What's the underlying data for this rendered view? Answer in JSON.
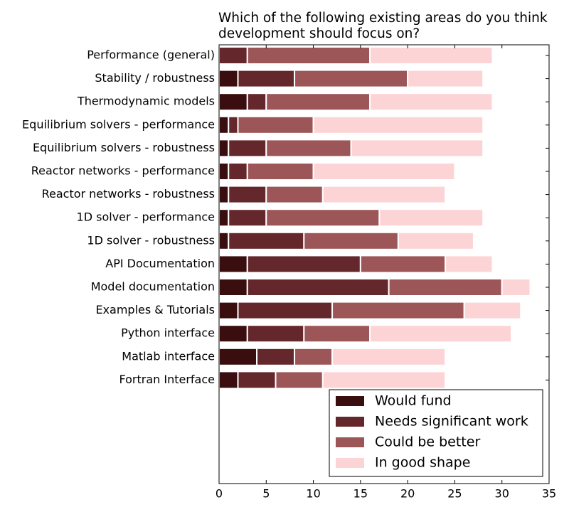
{
  "chart_data": {
    "type": "stacked-barh",
    "title": "Which of the following existing areas do you think development should focus on?",
    "categories": [
      "Performance (general)",
      "Stability / robustness",
      "Thermodynamic models",
      "Equilibrium solvers - performance",
      "Equilibrium solvers - robustness",
      "Reactor networks - performance",
      "Reactor networks - robustness",
      "1D solver - performance",
      "1D solver - robustness",
      "API Documentation",
      "Model documentation",
      "Examples & Tutorials",
      "Python interface",
      "Matlab interface",
      "Fortran Interface"
    ],
    "series": [
      {
        "name": "Would fund",
        "color": "#3a0e0f",
        "values": [
          0,
          2,
          3,
          1,
          1,
          1,
          1,
          1,
          1,
          3,
          3,
          2,
          3,
          4,
          2
        ]
      },
      {
        "name": "Needs significant work",
        "color": "#64272b",
        "values": [
          3,
          6,
          2,
          1,
          4,
          2,
          4,
          4,
          8,
          12,
          15,
          10,
          6,
          4,
          4
        ]
      },
      {
        "name": "Could be better",
        "color": "#9c5657",
        "values": [
          13,
          12,
          11,
          8,
          9,
          7,
          6,
          12,
          10,
          9,
          12,
          14,
          7,
          4,
          5
        ]
      },
      {
        "name": "In good shape",
        "color": "#fdd4d6",
        "values": [
          13,
          8,
          13,
          18,
          14,
          15,
          13,
          11,
          8,
          5,
          3,
          6,
          15,
          12,
          13
        ]
      }
    ],
    "xlim": [
      0,
      35
    ],
    "xticks": [
      0,
      5,
      10,
      15,
      20,
      25,
      30,
      35
    ],
    "legend": "lower right"
  }
}
